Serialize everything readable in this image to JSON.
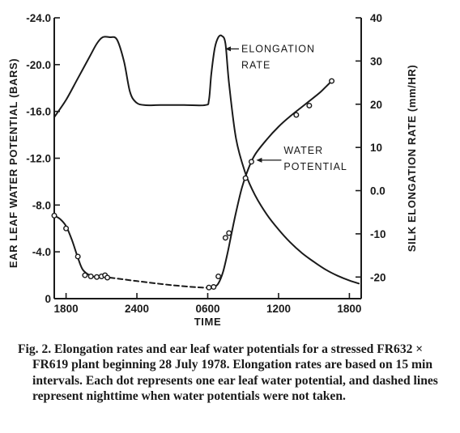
{
  "chart_data": {
    "type": "line",
    "xlabel": "TIME",
    "x_ticks": [
      "1800",
      "2400",
      "0600",
      "1200",
      "1800"
    ],
    "y_left": {
      "label": "EAR LEAF WATER POTENTIAL (BARS)",
      "ticks": [
        "-24.0",
        "-20.0",
        "-16.0",
        "-12.0",
        "-8.0",
        "-4.0",
        "0"
      ],
      "range": [
        0,
        -24
      ]
    },
    "y_right": {
      "label": "SILK ELONGATION RATE (mm/HR)",
      "ticks": [
        "40",
        "30",
        "20",
        "10",
        "0.0",
        "-10",
        "-20"
      ],
      "range": [
        -25,
        40
      ]
    },
    "series": [
      {
        "name": "ELONGATION RATE",
        "axis": "right",
        "style": "solid",
        "points": [
          [
            -1.0,
            17
          ],
          [
            0.0,
            21
          ],
          [
            1.0,
            26
          ],
          [
            2.0,
            31
          ],
          [
            2.6,
            34
          ],
          [
            3.1,
            35.5
          ],
          [
            3.7,
            35.5
          ],
          [
            4.3,
            35
          ],
          [
            4.9,
            30
          ],
          [
            5.4,
            23
          ],
          [
            5.9,
            20.5
          ],
          [
            6.6,
            19.8
          ],
          [
            8.0,
            19.8
          ],
          [
            10.0,
            19.8
          ],
          [
            11.8,
            19.8
          ],
          [
            12.1,
            21
          ],
          [
            12.3,
            27
          ],
          [
            12.6,
            33
          ],
          [
            12.9,
            35.5
          ],
          [
            13.2,
            35.8
          ],
          [
            13.5,
            34
          ],
          [
            13.8,
            25
          ],
          [
            14.4,
            12
          ],
          [
            15.2,
            4
          ],
          [
            16.0,
            -1
          ],
          [
            17.0,
            -5.5
          ],
          [
            18.0,
            -9
          ],
          [
            19.0,
            -12
          ],
          [
            20.0,
            -14.5
          ],
          [
            21.0,
            -16.5
          ],
          [
            22.0,
            -18.3
          ],
          [
            23.0,
            -19.7
          ],
          [
            24.0,
            -20.8
          ],
          [
            24.8,
            -21.5
          ]
        ]
      },
      {
        "name": "WATER POTENTIAL",
        "axis": "left",
        "style": "solid",
        "points": [
          [
            -1.0,
            -7.1
          ],
          [
            -0.5,
            -6.8
          ],
          [
            0.0,
            -6.2
          ],
          [
            0.5,
            -5.0
          ],
          [
            1.0,
            -3.5
          ],
          [
            1.4,
            -2.5
          ],
          [
            2.0,
            -2.0
          ],
          [
            2.6,
            -1.85
          ],
          [
            3.2,
            -1.95
          ],
          [
            3.7,
            -1.8
          ]
        ]
      },
      {
        "name": "WATER POTENTIAL (night)",
        "axis": "left",
        "style": "dashed",
        "points": [
          [
            3.7,
            -1.8
          ],
          [
            6.0,
            -1.5
          ],
          [
            9.0,
            -1.15
          ],
          [
            11.5,
            -0.95
          ],
          [
            12.5,
            -0.95
          ]
        ]
      },
      {
        "name": "WATER POTENTIAL (day)",
        "axis": "left",
        "style": "solid",
        "points": [
          [
            12.5,
            -0.95
          ],
          [
            12.9,
            -1.3
          ],
          [
            13.3,
            -2.3
          ],
          [
            13.7,
            -4.0
          ],
          [
            14.0,
            -5.5
          ],
          [
            14.4,
            -7.4
          ],
          [
            14.9,
            -9.5
          ],
          [
            15.4,
            -11.0
          ],
          [
            16.0,
            -12.3
          ],
          [
            17.0,
            -13.6
          ],
          [
            18.0,
            -14.7
          ],
          [
            19.0,
            -15.6
          ],
          [
            20.0,
            -16.4
          ],
          [
            21.0,
            -17.2
          ],
          [
            21.6,
            -17.7
          ],
          [
            22.0,
            -18.1
          ],
          [
            22.5,
            -18.6
          ]
        ]
      }
    ],
    "observations": [
      [
        -1.0,
        -7.1
      ],
      [
        0.0,
        -6.0
      ],
      [
        1.0,
        -3.6
      ],
      [
        1.6,
        -2.0
      ],
      [
        2.1,
        -1.9
      ],
      [
        2.6,
        -1.85
      ],
      [
        3.0,
        -1.9
      ],
      [
        3.3,
        -2.0
      ],
      [
        3.5,
        -1.8
      ],
      [
        12.1,
        -0.95
      ],
      [
        12.5,
        -1.0
      ],
      [
        12.9,
        -1.9
      ],
      [
        13.5,
        -5.2
      ],
      [
        13.8,
        -5.6
      ],
      [
        15.2,
        -10.3
      ],
      [
        15.7,
        -11.7
      ],
      [
        19.5,
        -15.7
      ],
      [
        20.6,
        -16.5
      ],
      [
        22.5,
        -18.6
      ]
    ],
    "annotations": [
      {
        "text": "ELONGATION",
        "series": "ELONGATION RATE"
      },
      {
        "text": "RATE",
        "series": "ELONGATION RATE"
      },
      {
        "text": "WATER",
        "series": "WATER POTENTIAL"
      },
      {
        "text": "POTENTIAL",
        "series": "WATER POTENTIAL"
      }
    ]
  },
  "caption": "Fig. 2. Elongation rates and ear leaf water potentials for a stressed FR632 × FR619 plant beginning 28 July 1978. Elongation rates are based on 15 min intervals. Each dot represents one ear leaf water potential, and dashed lines represent nighttime when water potentials were not taken."
}
